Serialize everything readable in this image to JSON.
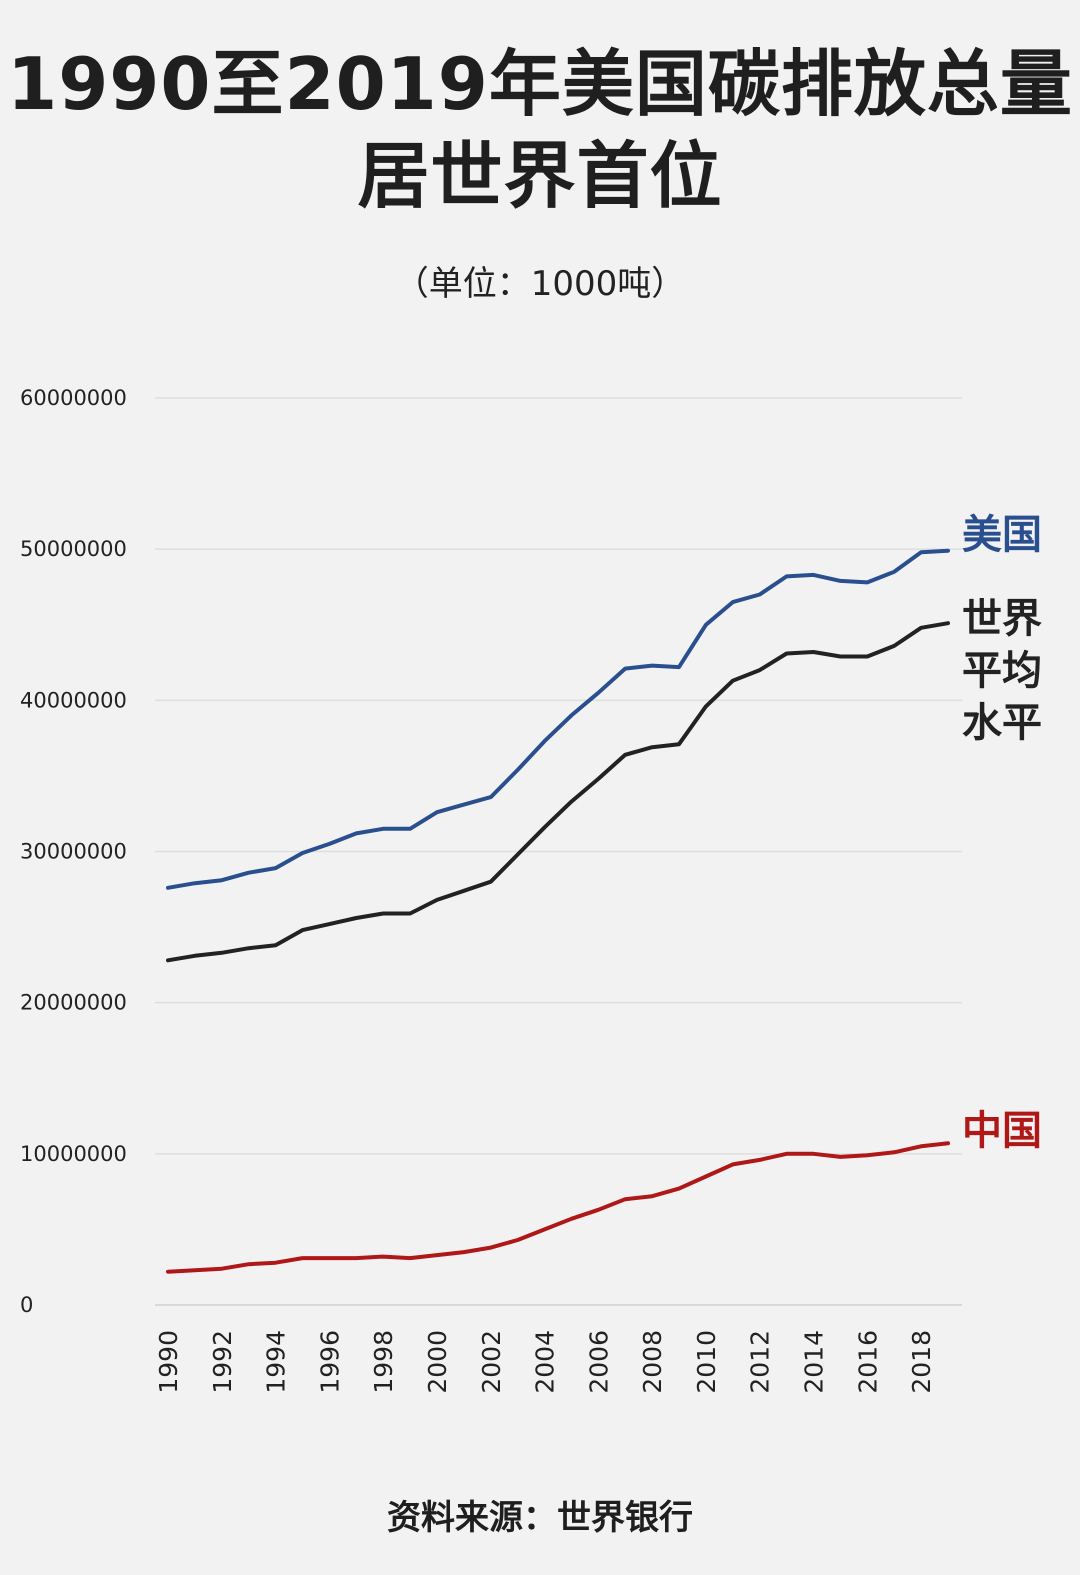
{
  "header": {
    "title_line1": "1990至2019年美国碳排放总量",
    "title_line2": "居世界首位",
    "unit_note": "（单位：1000吨）"
  },
  "footer": {
    "source": "资料来源：世界银行"
  },
  "chart_data": {
    "type": "line",
    "title": "1990至2019年美国碳排放总量居世界首位",
    "subtitle": "（单位：1000吨）",
    "xlabel": "",
    "ylabel": "",
    "ylim": [
      0,
      60000000
    ],
    "yticks": [
      0,
      10000000,
      20000000,
      30000000,
      40000000,
      50000000,
      60000000
    ],
    "ytick_labels": [
      "0",
      "10000000",
      "20000000",
      "30000000",
      "40000000",
      "50000000",
      "60000000"
    ],
    "xtick_labels": [
      "1990",
      "1992",
      "1994",
      "1996",
      "1998",
      "2000",
      "2002",
      "2004",
      "2006",
      "2008",
      "2010",
      "2012",
      "2014",
      "2016",
      "2018"
    ],
    "grid": "horizontal",
    "x": [
      1990,
      1991,
      1992,
      1993,
      1994,
      1995,
      1996,
      1997,
      1998,
      1999,
      2000,
      2001,
      2002,
      2003,
      2004,
      2005,
      2006,
      2007,
      2008,
      2009,
      2010,
      2011,
      2012,
      2013,
      2014,
      2015,
      2016,
      2017,
      2018,
      2019
    ],
    "series": [
      {
        "name": "美国",
        "color": "#2a4f8f",
        "values": [
          27600000,
          27900000,
          28100000,
          28600000,
          28900000,
          29900000,
          30500000,
          31200000,
          31500000,
          31500000,
          32600000,
          33100000,
          33600000,
          35400000,
          37300000,
          39000000,
          40500000,
          42100000,
          42300000,
          42200000,
          45000000,
          46500000,
          47000000,
          48200000,
          48300000,
          47900000,
          47800000,
          48500000,
          49800000,
          49900000
        ]
      },
      {
        "name": "世界平均水平",
        "color": "#222222",
        "values": [
          22800000,
          23100000,
          23300000,
          23600000,
          23800000,
          24800000,
          25200000,
          25600000,
          25900000,
          25900000,
          26800000,
          27400000,
          28000000,
          29800000,
          31600000,
          33300000,
          34800000,
          36400000,
          36900000,
          37100000,
          39600000,
          41300000,
          42000000,
          43100000,
          43200000,
          42900000,
          42900000,
          43600000,
          44800000,
          45100000
        ]
      },
      {
        "name": "中国",
        "color": "#b01818",
        "values": [
          2200000,
          2300000,
          2400000,
          2700000,
          2800000,
          3100000,
          3100000,
          3100000,
          3200000,
          3100000,
          3300000,
          3500000,
          3800000,
          4300000,
          5000000,
          5700000,
          6300000,
          7000000,
          7200000,
          7700000,
          8500000,
          9300000,
          9600000,
          10000000,
          10000000,
          9800000,
          9900000,
          10100000,
          10500000,
          10700000
        ]
      }
    ],
    "series_labels": [
      {
        "lines": [
          "美国"
        ],
        "color": "#2a4f8f"
      },
      {
        "lines": [
          "世界",
          "平均",
          "水平"
        ],
        "color": "#222222"
      },
      {
        "lines": [
          "中国"
        ],
        "color": "#b01818"
      }
    ]
  }
}
